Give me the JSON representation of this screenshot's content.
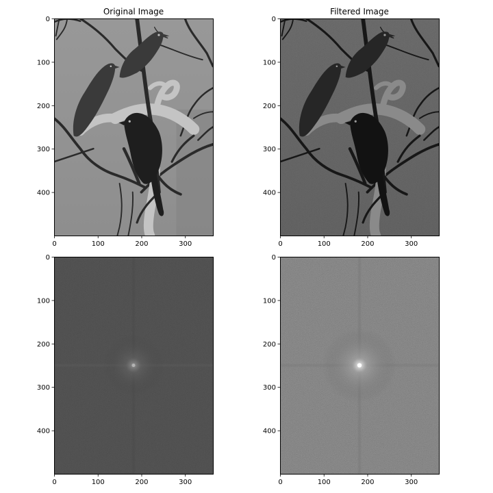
{
  "figure": {
    "panels": [
      {
        "key": "original_image",
        "title": "Original Image",
        "content": "grayscale photo of three birds perched on bare branches"
      },
      {
        "key": "filtered_image",
        "title": "Filtered Image",
        "content": "same photo after filtering, darker with enhanced detail"
      },
      {
        "key": "original_spectrum",
        "title": "",
        "content": "log magnitude Fourier spectrum, dark with faint central cross"
      },
      {
        "key": "filtered_spectrum",
        "title": "",
        "content": "log magnitude Fourier spectrum, brighter noisy texture with bright center"
      }
    ]
  },
  "chart_data": [
    {
      "type": "heatmap",
      "title": "Original Image",
      "xlabel": "",
      "ylabel": "",
      "xlim": [
        0,
        364
      ],
      "ylim": [
        500,
        0
      ],
      "xticks": [
        0,
        100,
        200,
        300
      ],
      "yticks": [
        0,
        100,
        200,
        300,
        400
      ],
      "grid": false,
      "colormap": "gray"
    },
    {
      "type": "heatmap",
      "title": "Filtered Image",
      "xlabel": "",
      "ylabel": "",
      "xlim": [
        0,
        364
      ],
      "ylim": [
        500,
        0
      ],
      "xticks": [
        0,
        100,
        200,
        300
      ],
      "yticks": [
        0,
        100,
        200,
        300,
        400
      ],
      "grid": false,
      "colormap": "gray"
    },
    {
      "type": "heatmap",
      "title": "",
      "xlabel": "",
      "ylabel": "",
      "xlim": [
        0,
        364
      ],
      "ylim": [
        500,
        0
      ],
      "xticks": [
        0,
        100,
        200,
        300
      ],
      "yticks": [
        0,
        100,
        200,
        300,
        400
      ],
      "grid": false,
      "colormap": "gray",
      "bright_spot": [
        182,
        250
      ]
    },
    {
      "type": "heatmap",
      "title": "",
      "xlabel": "",
      "ylabel": "",
      "xlim": [
        0,
        364
      ],
      "ylim": [
        500,
        0
      ],
      "xticks": [
        0,
        100,
        200,
        300
      ],
      "yticks": [
        0,
        100,
        200,
        300,
        400
      ],
      "grid": false,
      "colormap": "gray",
      "bright_spot": [
        182,
        250
      ]
    }
  ]
}
